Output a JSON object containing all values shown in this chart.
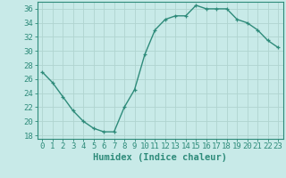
{
  "x": [
    0,
    1,
    2,
    3,
    4,
    5,
    6,
    7,
    8,
    9,
    10,
    11,
    12,
    13,
    14,
    15,
    16,
    17,
    18,
    19,
    20,
    21,
    22,
    23
  ],
  "y": [
    27,
    25.5,
    23.5,
    21.5,
    20,
    19,
    18.5,
    18.5,
    22,
    24.5,
    29.5,
    33,
    34.5,
    35,
    35,
    36.5,
    36,
    36,
    36,
    34.5,
    34,
    33,
    31.5,
    30.5
  ],
  "line_color": "#2e8b7a",
  "marker": "+",
  "bg_color": "#c8eae8",
  "grid_color": "#b0d4d0",
  "xlabel": "Humidex (Indice chaleur)",
  "xlim": [
    -0.5,
    23.5
  ],
  "ylim": [
    17.5,
    37
  ],
  "yticks": [
    18,
    20,
    22,
    24,
    26,
    28,
    30,
    32,
    34,
    36
  ],
  "xticks": [
    0,
    1,
    2,
    3,
    4,
    5,
    6,
    7,
    8,
    9,
    10,
    11,
    12,
    13,
    14,
    15,
    16,
    17,
    18,
    19,
    20,
    21,
    22,
    23
  ],
  "xlabel_fontsize": 7.5,
  "tick_fontsize": 6.5,
  "linewidth": 1.0,
  "markersize": 3.5
}
